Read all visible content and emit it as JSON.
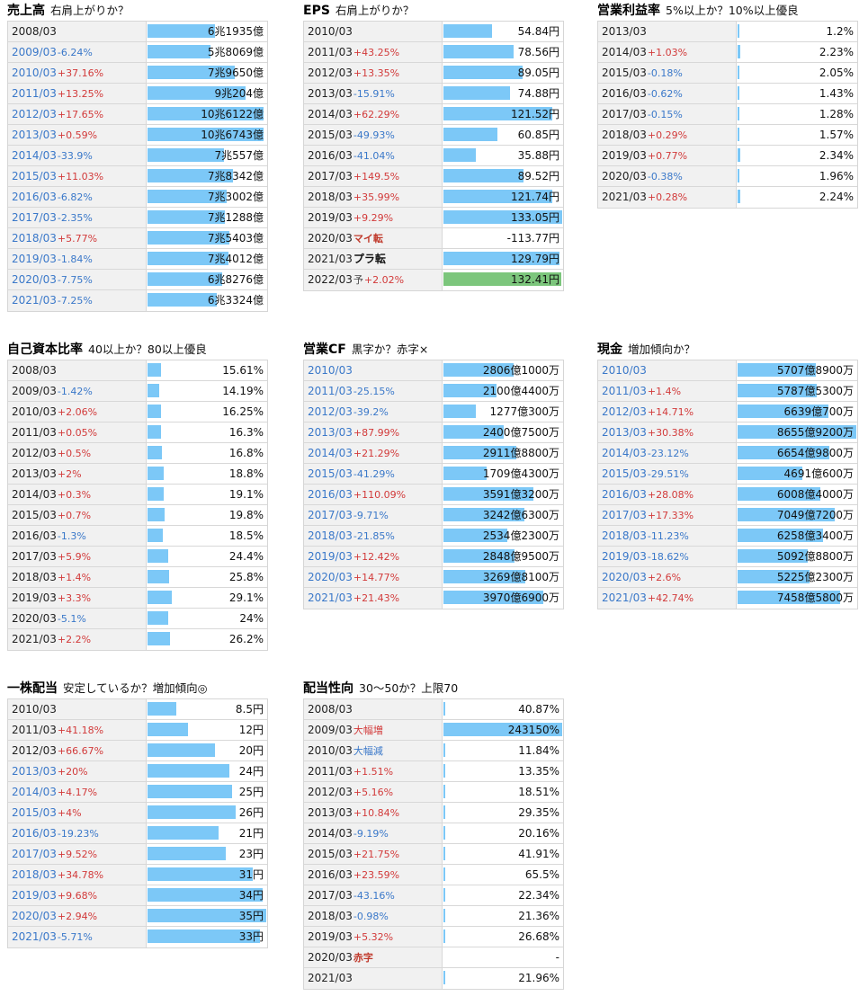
{
  "colors": {
    "bar": "#7cc8f7",
    "bar_green": "#7cc67c",
    "increase": "#d23a3a",
    "decrease": "#3a78c9"
  },
  "panels": [
    {
      "id": "sales",
      "title": "売上高",
      "subtitle": "右肩上がりか？",
      "max": 109000,
      "rows": [
        {
          "year": "2008/03",
          "change": "",
          "value": "6兆1935億",
          "n": 61935
        },
        {
          "year": "2009/03",
          "change": "-6.24%",
          "value": "5兆8069億",
          "n": 58069
        },
        {
          "year": "2010/03",
          "change": "+37.16%",
          "value": "7兆9650億",
          "n": 79650
        },
        {
          "year": "2011/03",
          "change": "+13.25%",
          "value": "9兆204億",
          "n": 90204
        },
        {
          "year": "2012/03",
          "change": "+17.65%",
          "value": "10兆6122億",
          "n": 106122
        },
        {
          "year": "2013/03",
          "change": "+0.59%",
          "value": "10兆6743億",
          "n": 106743
        },
        {
          "year": "2014/03",
          "change": "-33.9%",
          "value": "7兆557億",
          "n": 70557
        },
        {
          "year": "2015/03",
          "change": "+11.03%",
          "value": "7兆8342億",
          "n": 78342
        },
        {
          "year": "2016/03",
          "change": "-6.82%",
          "value": "7兆3002億",
          "n": 73002
        },
        {
          "year": "2017/03",
          "change": "-2.35%",
          "value": "7兆1288億",
          "n": 71288
        },
        {
          "year": "2018/03",
          "change": "+5.77%",
          "value": "7兆5403億",
          "n": 75403
        },
        {
          "year": "2019/03",
          "change": "-1.84%",
          "value": "7兆4012億",
          "n": 74012
        },
        {
          "year": "2020/03",
          "change": "-7.75%",
          "value": "6兆8276億",
          "n": 68276
        },
        {
          "year": "2021/03",
          "change": "-7.25%",
          "value": "6兆3324億",
          "n": 63324
        }
      ]
    },
    {
      "id": "eps",
      "title": "EPS",
      "subtitle": "右肩上がりか？",
      "max": 133.05,
      "rows": [
        {
          "year": "2010/03",
          "change": "",
          "value": "54.84円",
          "n": 54.84
        },
        {
          "year": "2011/03",
          "change": "+43.25%",
          "value": "78.56円",
          "n": 78.56
        },
        {
          "year": "2012/03",
          "change": "+13.35%",
          "value": "89.05円",
          "n": 89.05
        },
        {
          "year": "2013/03",
          "change": "-15.91%",
          "value": "74.88円",
          "n": 74.88
        },
        {
          "year": "2014/03",
          "change": "+62.29%",
          "value": "121.52円",
          "n": 121.52
        },
        {
          "year": "2015/03",
          "change": "-49.93%",
          "value": "60.85円",
          "n": 60.85
        },
        {
          "year": "2016/03",
          "change": "-41.04%",
          "value": "35.88円",
          "n": 35.88
        },
        {
          "year": "2017/03",
          "change": "+149.5%",
          "value": "89.52円",
          "n": 89.52
        },
        {
          "year": "2018/03",
          "change": "+35.99%",
          "value": "121.74円",
          "n": 121.74
        },
        {
          "year": "2019/03",
          "change": "+9.29%",
          "value": "133.05円",
          "n": 133.05
        },
        {
          "year": "2020/03",
          "change": "マイ転",
          "value": "-113.77円",
          "n": 0,
          "tag": "red"
        },
        {
          "year": "2021/03",
          "change": "プラ転",
          "value": "129.79円",
          "n": 129.79,
          "tag": "dark"
        },
        {
          "year": "2022/03",
          "yo": "予",
          "change": "+2.02%",
          "value": "132.41円",
          "n": 132.41,
          "bar": "green"
        }
      ]
    },
    {
      "id": "opm",
      "title": "営業利益率",
      "subtitle": "5%以上か？10%以上優良",
      "max": 120,
      "rows": [
        {
          "year": "2013/03",
          "change": "",
          "value": "1.2%",
          "n": 1.2
        },
        {
          "year": "2014/03",
          "change": "+1.03%",
          "value": "2.23%",
          "n": 2.23
        },
        {
          "year": "2015/03",
          "change": "-0.18%",
          "value": "2.05%",
          "n": 2.05
        },
        {
          "year": "2016/03",
          "change": "-0.62%",
          "value": "1.43%",
          "n": 1.43
        },
        {
          "year": "2017/03",
          "change": "-0.15%",
          "value": "1.28%",
          "n": 1.28
        },
        {
          "year": "2018/03",
          "change": "+0.29%",
          "value": "1.57%",
          "n": 1.57
        },
        {
          "year": "2019/03",
          "change": "+0.77%",
          "value": "2.34%",
          "n": 2.34
        },
        {
          "year": "2020/03",
          "change": "-0.38%",
          "value": "1.96%",
          "n": 1.96
        },
        {
          "year": "2021/03",
          "change": "+0.28%",
          "value": "2.24%",
          "n": 2.24
        }
      ]
    },
    {
      "id": "equity",
      "title": "自己資本比率",
      "subtitle": "40以上か？80以上優良",
      "max": 140,
      "rows": [
        {
          "year": "2008/03",
          "change": "",
          "value": "15.61%",
          "n": 15.61
        },
        {
          "year": "2009/03",
          "change": "-1.42%",
          "value": "14.19%",
          "n": 14.19
        },
        {
          "year": "2010/03",
          "change": "+2.06%",
          "value": "16.25%",
          "n": 16.25
        },
        {
          "year": "2011/03",
          "change": "+0.05%",
          "value": "16.3%",
          "n": 16.3
        },
        {
          "year": "2012/03",
          "change": "+0.5%",
          "value": "16.8%",
          "n": 16.8
        },
        {
          "year": "2013/03",
          "change": "+2%",
          "value": "18.8%",
          "n": 18.8
        },
        {
          "year": "2014/03",
          "change": "+0.3%",
          "value": "19.1%",
          "n": 19.1
        },
        {
          "year": "2015/03",
          "change": "+0.7%",
          "value": "19.8%",
          "n": 19.8
        },
        {
          "year": "2016/03",
          "change": "-1.3%",
          "value": "18.5%",
          "n": 18.5
        },
        {
          "year": "2017/03",
          "change": "+5.9%",
          "value": "24.4%",
          "n": 24.4
        },
        {
          "year": "2018/03",
          "change": "+1.4%",
          "value": "25.8%",
          "n": 25.8
        },
        {
          "year": "2019/03",
          "change": "+3.3%",
          "value": "29.1%",
          "n": 29.1
        },
        {
          "year": "2020/03",
          "change": "-5.1%",
          "value": "24%",
          "n": 24
        },
        {
          "year": "2021/03",
          "change": "+2.2%",
          "value": "26.2%",
          "n": 26.2
        }
      ]
    },
    {
      "id": "opcf",
      "title": "営業CF",
      "subtitle": "黒字か？赤字×",
      "max": 4740,
      "rows": [
        {
          "year": "2010/03",
          "change": "",
          "value": "2806億1000万",
          "n": 2806
        },
        {
          "year": "2011/03",
          "change": "-25.15%",
          "value": "2100億4400万",
          "n": 2100
        },
        {
          "year": "2012/03",
          "change": "-39.2%",
          "value": "1277億300万",
          "n": 1277
        },
        {
          "year": "2013/03",
          "change": "+87.99%",
          "value": "2400億7500万",
          "n": 2400
        },
        {
          "year": "2014/03",
          "change": "+21.29%",
          "value": "2911億8800万",
          "n": 2911
        },
        {
          "year": "2015/03",
          "change": "-41.29%",
          "value": "1709億4300万",
          "n": 1709
        },
        {
          "year": "2016/03",
          "change": "+110.09%",
          "value": "3591億3200万",
          "n": 3591
        },
        {
          "year": "2017/03",
          "change": "-9.71%",
          "value": "3242億6300万",
          "n": 3242
        },
        {
          "year": "2018/03",
          "change": "-21.85%",
          "value": "2534億2300万",
          "n": 2534
        },
        {
          "year": "2019/03",
          "change": "+12.42%",
          "value": "2848億9500万",
          "n": 2848
        },
        {
          "year": "2020/03",
          "change": "+14.77%",
          "value": "3269億8100万",
          "n": 3269
        },
        {
          "year": "2021/03",
          "change": "+21.43%",
          "value": "3970億6900万",
          "n": 3970
        }
      ]
    },
    {
      "id": "cash",
      "title": "現金",
      "subtitle": "増加傾向か？",
      "max": 8655,
      "rows": [
        {
          "year": "2010/03",
          "change": "",
          "value": "5707億8900万",
          "n": 5707
        },
        {
          "year": "2011/03",
          "change": "+1.4%",
          "value": "5787億5300万",
          "n": 5787
        },
        {
          "year": "2012/03",
          "change": "+14.71%",
          "value": "6639億700万",
          "n": 6639
        },
        {
          "year": "2013/03",
          "change": "+30.38%",
          "value": "8655億9200万",
          "n": 8655
        },
        {
          "year": "2014/03",
          "change": "-23.12%",
          "value": "6654億9800万",
          "n": 6654
        },
        {
          "year": "2015/03",
          "change": "-29.51%",
          "value": "4691億600万",
          "n": 4691
        },
        {
          "year": "2016/03",
          "change": "+28.08%",
          "value": "6008億4000万",
          "n": 6008
        },
        {
          "year": "2017/03",
          "change": "+17.33%",
          "value": "7049億7200万",
          "n": 7049
        },
        {
          "year": "2018/03",
          "change": "-11.23%",
          "value": "6258億3400万",
          "n": 6258
        },
        {
          "year": "2019/03",
          "change": "-18.62%",
          "value": "5092億8800万",
          "n": 5092
        },
        {
          "year": "2020/03",
          "change": "+2.6%",
          "value": "5225億2300万",
          "n": 5225
        },
        {
          "year": "2021/03",
          "change": "+42.74%",
          "value": "7458億5800万",
          "n": 7458
        }
      ]
    },
    {
      "id": "dps",
      "title": "一株配当",
      "subtitle": "安定しているか？増加傾向◎",
      "max": 35,
      "rows": [
        {
          "year": "2010/03",
          "change": "",
          "value": "8.5円",
          "n": 8.5
        },
        {
          "year": "2011/03",
          "change": "+41.18%",
          "value": "12円",
          "n": 12
        },
        {
          "year": "2012/03",
          "change": "+66.67%",
          "value": "20円",
          "n": 20
        },
        {
          "year": "2013/03",
          "change": "+20%",
          "value": "24円",
          "n": 24
        },
        {
          "year": "2014/03",
          "change": "+4.17%",
          "value": "25円",
          "n": 25
        },
        {
          "year": "2015/03",
          "change": "+4%",
          "value": "26円",
          "n": 26
        },
        {
          "year": "2016/03",
          "change": "-19.23%",
          "value": "21円",
          "n": 21
        },
        {
          "year": "2017/03",
          "change": "+9.52%",
          "value": "23円",
          "n": 23
        },
        {
          "year": "2018/03",
          "change": "+34.78%",
          "value": "31円",
          "n": 31
        },
        {
          "year": "2019/03",
          "change": "+9.68%",
          "value": "34円",
          "n": 34
        },
        {
          "year": "2020/03",
          "change": "+2.94%",
          "value": "35円",
          "n": 35
        },
        {
          "year": "2021/03",
          "change": "-5.71%",
          "value": "33円",
          "n": 33
        }
      ]
    },
    {
      "id": "payout",
      "title": "配当性向",
      "subtitle": "30～50か？上限70",
      "max": 243150,
      "rows": [
        {
          "year": "2008/03",
          "change": "",
          "value": "40.87%",
          "n": 40.87
        },
        {
          "year": "2009/03",
          "change": "大幅増",
          "value": "243150%",
          "n": 243150
        },
        {
          "year": "2010/03",
          "change": "大幅減",
          "value": "11.84%",
          "n": 11.84,
          "tag": "blue"
        },
        {
          "year": "2011/03",
          "change": "+1.51%",
          "value": "13.35%",
          "n": 13.35
        },
        {
          "year": "2012/03",
          "change": "+5.16%",
          "value": "18.51%",
          "n": 18.51
        },
        {
          "year": "2013/03",
          "change": "+10.84%",
          "value": "29.35%",
          "n": 29.35
        },
        {
          "year": "2014/03",
          "change": "-9.19%",
          "value": "20.16%",
          "n": 20.16
        },
        {
          "year": "2015/03",
          "change": "+21.75%",
          "value": "41.91%",
          "n": 41.91
        },
        {
          "year": "2016/03",
          "change": "+23.59%",
          "value": "65.5%",
          "n": 65.5
        },
        {
          "year": "2017/03",
          "change": "-43.16%",
          "value": "22.34%",
          "n": 22.34
        },
        {
          "year": "2018/03",
          "change": "-0.98%",
          "value": "21.36%",
          "n": 21.36
        },
        {
          "year": "2019/03",
          "change": "+5.32%",
          "value": "26.68%",
          "n": 26.68
        },
        {
          "year": "2020/03",
          "change": "赤字",
          "value": "-",
          "n": 0,
          "tag": "red"
        },
        {
          "year": "2021/03",
          "change": "",
          "value": "21.96%",
          "n": 21.96
        }
      ]
    }
  ]
}
